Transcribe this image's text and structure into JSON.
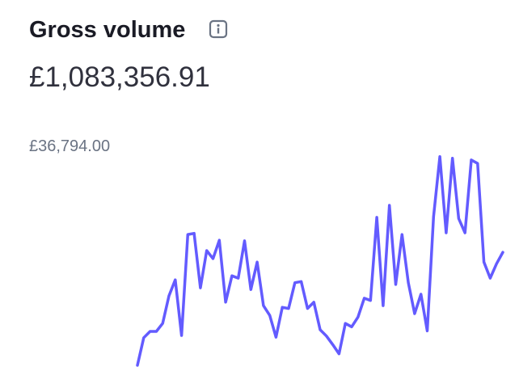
{
  "chart_data": {
    "type": "line",
    "title": "Gross volume",
    "subtitle": "£1,083,356.91",
    "ylim": [
      0,
      36794
    ],
    "yticks": [
      {
        "value": 36794,
        "label": "£36,794.00"
      }
    ],
    "grid": false,
    "series": [
      {
        "color": "#635bff",
        "values": [
          300,
          5100,
          6200,
          6200,
          7600,
          12400,
          15200,
          5500,
          23100,
          23300,
          13800,
          20300,
          18900,
          22100,
          11300,
          15900,
          15500,
          22000,
          13500,
          18300,
          10700,
          9000,
          5200,
          10400,
          10200,
          14700,
          14900,
          10200,
          11300,
          6500,
          5400,
          3900,
          2300,
          7600,
          7000,
          8700,
          12000,
          11600,
          26100,
          10700,
          28200,
          14400,
          23100,
          14700,
          9300,
          12700,
          6300,
          26200,
          36700,
          23400,
          36400,
          25900,
          23400,
          36100,
          35500,
          18300,
          15500,
          18000,
          20000
        ]
      }
    ]
  }
}
